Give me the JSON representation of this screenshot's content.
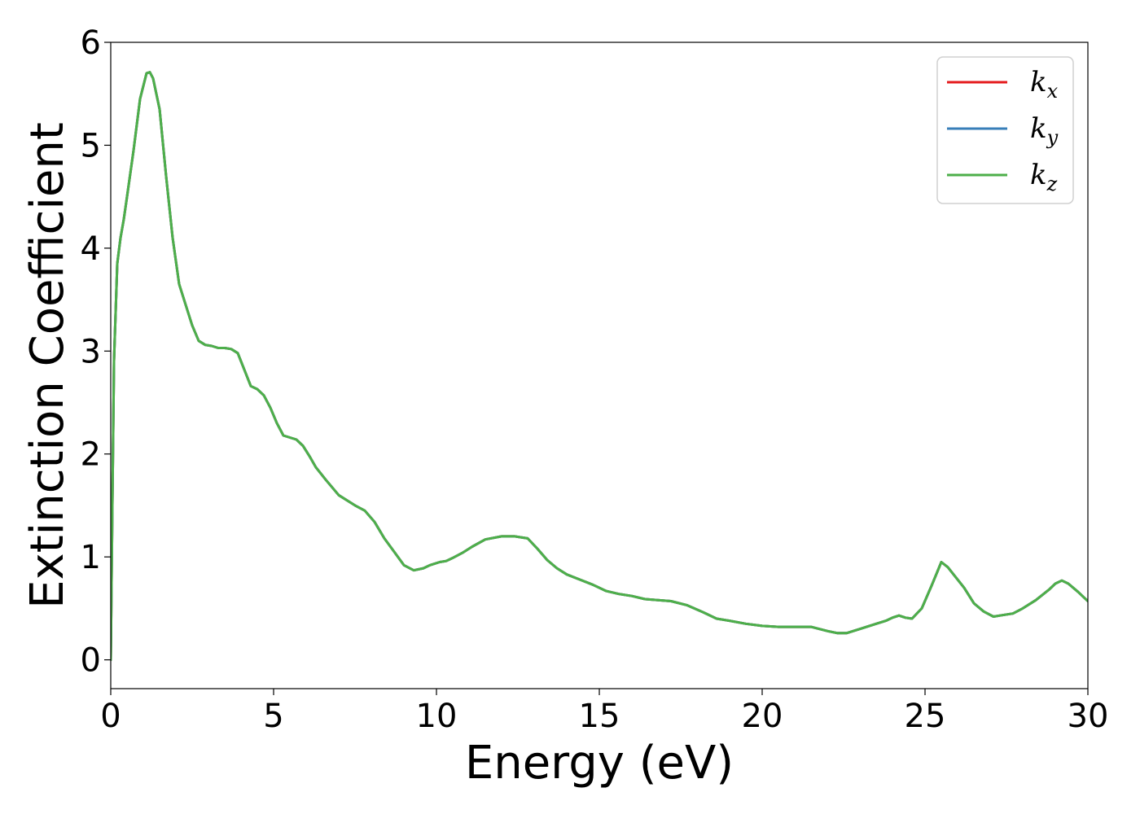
{
  "chart_data": {
    "type": "line",
    "xlabel": "Energy (eV)",
    "ylabel": "Extinction Coefficient",
    "xlim": [
      0,
      30
    ],
    "ylim": [
      -0.28,
      6
    ],
    "xticks": [
      0,
      5,
      10,
      15,
      20,
      25,
      30
    ],
    "yticks": [
      0,
      1,
      2,
      3,
      4,
      5,
      6
    ],
    "grid": false,
    "legend_position": "top-right",
    "colors": {
      "kx": "#e41a1c",
      "ky": "#377eb8",
      "kz": "#4daf4a"
    },
    "legend": [
      {
        "key": "kx",
        "base": "k",
        "sub": "x"
      },
      {
        "key": "ky",
        "base": "k",
        "sub": "y"
      },
      {
        "key": "kz",
        "base": "k",
        "sub": "z"
      }
    ],
    "x": [
      0,
      0.05,
      0.1,
      0.2,
      0.3,
      0.4,
      0.5,
      0.7,
      0.9,
      1.1,
      1.2,
      1.3,
      1.5,
      1.7,
      1.9,
      2.1,
      2.3,
      2.5,
      2.7,
      2.9,
      3.1,
      3.3,
      3.5,
      3.7,
      3.9,
      4.1,
      4.3,
      4.5,
      4.7,
      4.9,
      5.1,
      5.3,
      5.5,
      5.7,
      5.9,
      6.1,
      6.3,
      6.6,
      7.0,
      7.5,
      7.8,
      8.1,
      8.4,
      8.7,
      9.0,
      9.3,
      9.6,
      9.8,
      10.1,
      10.3,
      10.5,
      10.8,
      11.1,
      11.5,
      12.0,
      12.4,
      12.8,
      13.1,
      13.4,
      13.7,
      14.0,
      14.4,
      14.8,
      15.2,
      15.6,
      16.0,
      16.4,
      16.8,
      17.2,
      17.7,
      18.2,
      18.6,
      19.0,
      19.5,
      20.0,
      20.5,
      21.0,
      21.5,
      22.0,
      22.3,
      22.6,
      23.0,
      23.5,
      23.8,
      24.0,
      24.2,
      24.4,
      24.6,
      24.9,
      25.2,
      25.5,
      25.7,
      25.9,
      26.2,
      26.5,
      26.8,
      27.1,
      27.3,
      27.7,
      28.0,
      28.4,
      28.8,
      29.0,
      29.2,
      29.4,
      29.7,
      30.0
    ],
    "series": [
      {
        "name": "kx",
        "color": "#e41a1c",
        "values": [
          0,
          1.5,
          2.9,
          3.85,
          4.1,
          4.28,
          4.5,
          4.95,
          5.45,
          5.7,
          5.71,
          5.65,
          5.35,
          4.7,
          4.1,
          3.65,
          3.45,
          3.25,
          3.1,
          3.06,
          3.05,
          3.03,
          3.03,
          3.02,
          2.98,
          2.82,
          2.66,
          2.63,
          2.57,
          2.45,
          2.3,
          2.18,
          2.16,
          2.14,
          2.08,
          1.98,
          1.87,
          1.75,
          1.6,
          1.5,
          1.45,
          1.34,
          1.18,
          1.05,
          0.92,
          0.87,
          0.89,
          0.92,
          0.95,
          0.96,
          0.99,
          1.04,
          1.1,
          1.17,
          1.2,
          1.2,
          1.18,
          1.08,
          0.97,
          0.89,
          0.83,
          0.78,
          0.73,
          0.67,
          0.64,
          0.62,
          0.59,
          0.58,
          0.57,
          0.53,
          0.46,
          0.4,
          0.38,
          0.35,
          0.33,
          0.32,
          0.32,
          0.32,
          0.28,
          0.26,
          0.26,
          0.3,
          0.35,
          0.38,
          0.41,
          0.43,
          0.41,
          0.4,
          0.5,
          0.72,
          0.95,
          0.9,
          0.82,
          0.7,
          0.55,
          0.47,
          0.42,
          0.43,
          0.45,
          0.5,
          0.58,
          0.68,
          0.74,
          0.77,
          0.74,
          0.66,
          0.57
        ]
      },
      {
        "name": "ky",
        "color": "#377eb8",
        "values": [
          0,
          1.5,
          2.9,
          3.85,
          4.1,
          4.28,
          4.5,
          4.95,
          5.45,
          5.7,
          5.71,
          5.65,
          5.35,
          4.7,
          4.1,
          3.65,
          3.45,
          3.25,
          3.1,
          3.06,
          3.05,
          3.03,
          3.03,
          3.02,
          2.98,
          2.82,
          2.66,
          2.63,
          2.57,
          2.45,
          2.3,
          2.18,
          2.16,
          2.14,
          2.08,
          1.98,
          1.87,
          1.75,
          1.6,
          1.5,
          1.45,
          1.34,
          1.18,
          1.05,
          0.92,
          0.87,
          0.89,
          0.92,
          0.95,
          0.96,
          0.99,
          1.04,
          1.1,
          1.17,
          1.2,
          1.2,
          1.18,
          1.08,
          0.97,
          0.89,
          0.83,
          0.78,
          0.73,
          0.67,
          0.64,
          0.62,
          0.59,
          0.58,
          0.57,
          0.53,
          0.46,
          0.4,
          0.38,
          0.35,
          0.33,
          0.32,
          0.32,
          0.32,
          0.28,
          0.26,
          0.26,
          0.3,
          0.35,
          0.38,
          0.41,
          0.43,
          0.41,
          0.4,
          0.5,
          0.72,
          0.95,
          0.9,
          0.82,
          0.7,
          0.55,
          0.47,
          0.42,
          0.43,
          0.45,
          0.5,
          0.58,
          0.68,
          0.74,
          0.77,
          0.74,
          0.66,
          0.57
        ]
      },
      {
        "name": "kz",
        "color": "#4daf4a",
        "values": [
          0,
          1.5,
          2.9,
          3.85,
          4.1,
          4.28,
          4.5,
          4.95,
          5.45,
          5.7,
          5.71,
          5.65,
          5.35,
          4.7,
          4.1,
          3.65,
          3.45,
          3.25,
          3.1,
          3.06,
          3.05,
          3.03,
          3.03,
          3.02,
          2.98,
          2.82,
          2.66,
          2.63,
          2.57,
          2.45,
          2.3,
          2.18,
          2.16,
          2.14,
          2.08,
          1.98,
          1.87,
          1.75,
          1.6,
          1.5,
          1.45,
          1.34,
          1.18,
          1.05,
          0.92,
          0.87,
          0.89,
          0.92,
          0.95,
          0.96,
          0.99,
          1.04,
          1.1,
          1.17,
          1.2,
          1.2,
          1.18,
          1.08,
          0.97,
          0.89,
          0.83,
          0.78,
          0.73,
          0.67,
          0.64,
          0.62,
          0.59,
          0.58,
          0.57,
          0.53,
          0.46,
          0.4,
          0.38,
          0.35,
          0.33,
          0.32,
          0.32,
          0.32,
          0.28,
          0.26,
          0.26,
          0.3,
          0.35,
          0.38,
          0.41,
          0.43,
          0.41,
          0.4,
          0.5,
          0.72,
          0.95,
          0.9,
          0.82,
          0.7,
          0.55,
          0.47,
          0.42,
          0.43,
          0.45,
          0.5,
          0.58,
          0.68,
          0.74,
          0.77,
          0.74,
          0.66,
          0.57
        ]
      }
    ]
  }
}
